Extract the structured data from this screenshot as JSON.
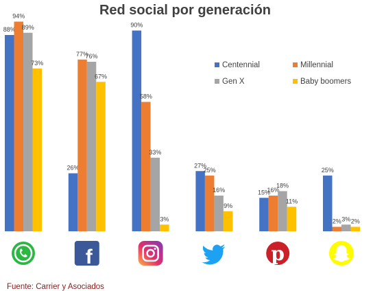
{
  "chart_data": {
    "type": "bar",
    "title": "Red social por generación",
    "categories": [
      "WhatsApp",
      "Facebook",
      "Instagram",
      "Twitter",
      "Pinterest",
      "Snapchat"
    ],
    "category_icons": [
      "whatsapp-icon",
      "facebook-icon",
      "instagram-icon",
      "twitter-icon",
      "pinterest-icon",
      "snapchat-icon"
    ],
    "series": [
      {
        "name": "Centennial",
        "color": "#4472c4",
        "values": [
          88,
          26,
          90,
          27,
          15,
          25
        ]
      },
      {
        "name": "Millennial",
        "color": "#ed7d31",
        "values": [
          94,
          77,
          58,
          25,
          16,
          2
        ]
      },
      {
        "name": "Gen X",
        "color": "#a5a5a5",
        "values": [
          89,
          76,
          33,
          16,
          18,
          3
        ]
      },
      {
        "name": "Baby boomers",
        "color": "#ffc000",
        "values": [
          73,
          67,
          3,
          9,
          11,
          2
        ]
      }
    ],
    "value_suffix": "%",
    "ylim": [
      0,
      100
    ],
    "grid": false,
    "legend_position": "right",
    "source": "Fuente: Carrier y Asociados"
  }
}
